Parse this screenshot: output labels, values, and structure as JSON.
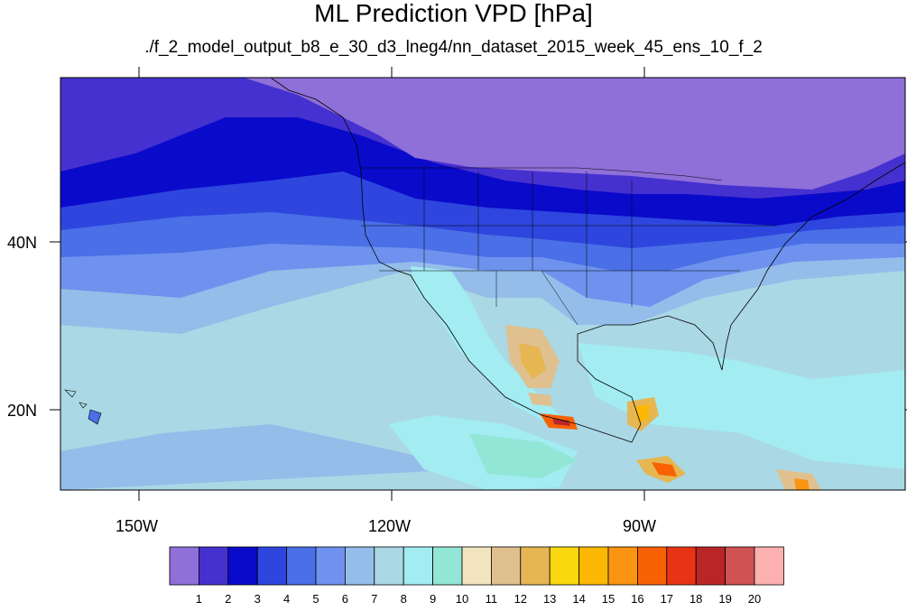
{
  "title": "ML Prediction VPD [hPa]",
  "subtitle": "./f_2_model_output_b8_e_30_d3_lneg4/nn_dataset_2015_week_45_ens_10_f_2",
  "axes": {
    "x_labels": [
      "150W",
      "120W",
      "90W"
    ],
    "y_labels": [
      "40N",
      "20N"
    ]
  },
  "colorbar": {
    "colors": [
      "#8f6fd8",
      "#4531cf",
      "#0a0acb",
      "#2e46de",
      "#4a6fe6",
      "#6e92ee",
      "#94bdea",
      "#aad8e4",
      "#a2ecf2",
      "#92e6d6",
      "#f2e4be",
      "#dfc08e",
      "#e6b652",
      "#fad810",
      "#fcb804",
      "#fb9410",
      "#f86204",
      "#e83414",
      "#ba2626",
      "#d05252",
      "#fcb0b0"
    ],
    "labels": [
      "1",
      "2",
      "3",
      "4",
      "5",
      "6",
      "7",
      "8",
      "9",
      "10",
      "11",
      "12",
      "13",
      "14",
      "15",
      "16",
      "17",
      "18",
      "19",
      "20"
    ]
  }
}
